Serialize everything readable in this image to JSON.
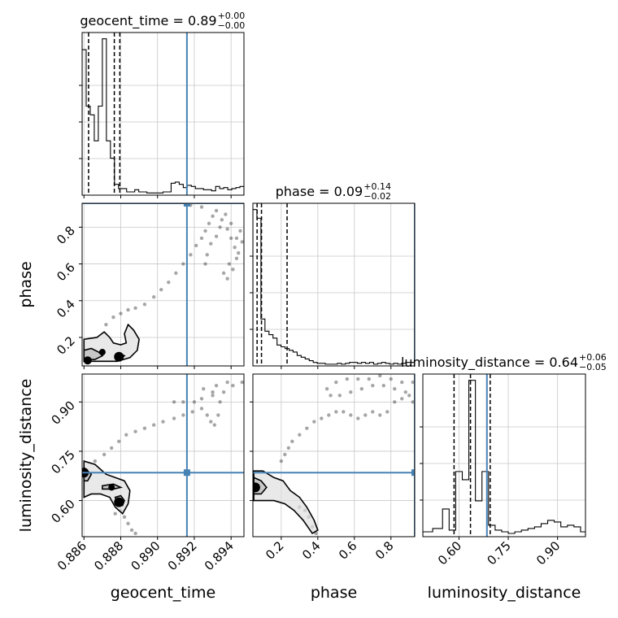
{
  "colors": {
    "truth": "#4682b4",
    "hist": "#000000",
    "grid": "#c8c8c8",
    "density": "#000000"
  },
  "chart_data": {
    "type": "corner",
    "parameters": [
      "geocent_time",
      "phase",
      "luminosity_distance"
    ],
    "truths": {
      "geocent_time": 0.8916,
      "phase": 0.93,
      "luminosity_distance": 0.685
    },
    "grid": true,
    "ranges": {
      "geocent_time": [
        0.8859,
        0.8947
      ],
      "phase": [
        0.045,
        0.93
      ],
      "luminosity_distance": [
        0.49,
        0.985
      ]
    },
    "ticks": {
      "geocent_time": {
        "values": [
          0.886,
          0.888,
          0.89,
          0.892,
          0.894
        ],
        "labels": [
          "0.886",
          "0.888",
          "0.890",
          "0.892",
          "0.894"
        ]
      },
      "phase": {
        "values": [
          0.2,
          0.4,
          0.6,
          0.8
        ],
        "labels": [
          "0.2",
          "0.4",
          "0.6",
          "0.8"
        ]
      },
      "luminosity_distance": {
        "values": [
          0.6,
          0.75,
          0.9
        ],
        "labels": [
          "0.60",
          "0.75",
          "0.90"
        ]
      }
    },
    "titles": [
      {
        "param": "geocent_time",
        "prefix": "geocent_time = 0.89",
        "sup": "+0.00",
        "sub": "−0.00"
      },
      {
        "param": "phase",
        "prefix": "phase = 0.09",
        "sup": "+0.14",
        "sub": "−0.02"
      },
      {
        "param": "luminosity_distance",
        "prefix": "luminosity_distance = 0.64",
        "sup": "+0.06",
        "sub": "−0.05"
      }
    ],
    "axis_labels": {
      "geocent_time": "geocent_time",
      "phase": "phase",
      "luminosity_distance": "luminosity_distance"
    },
    "histograms": {
      "geocent_time": {
        "edges": [
          0.8859,
          0.88612,
          0.88634,
          0.88656,
          0.88678,
          0.887,
          0.88722,
          0.88744,
          0.88766,
          0.88788,
          0.8881,
          0.88832,
          0.88854,
          0.88876,
          0.88898,
          0.8892,
          0.88942,
          0.88964,
          0.88986,
          0.89008,
          0.8903,
          0.89052,
          0.89074,
          0.89096,
          0.89118,
          0.8914,
          0.89162,
          0.89184,
          0.89206,
          0.89228,
          0.8925,
          0.89272,
          0.89294,
          0.89316,
          0.89338,
          0.8936,
          0.89382,
          0.89404,
          0.89426,
          0.89448,
          0.8947
        ],
        "counts": [
          0.67,
          0.41,
          0.37,
          0.25,
          0.41,
          0.72,
          0.25,
          0.17,
          0.05,
          0.03,
          0.03,
          0.015,
          0.015,
          0.025,
          0.015,
          0.015,
          0.01,
          0.01,
          0.01,
          0.01,
          0.015,
          0.015,
          0.055,
          0.06,
          0.05,
          0.035,
          0.045,
          0.04,
          0.03,
          0.03,
          0.025,
          0.025,
          0.02,
          0.04,
          0.03,
          0.035,
          0.025,
          0.03,
          0.035,
          0.04
        ],
        "quantiles": [
          0.88625,
          0.88765,
          0.88795
        ]
      },
      "phase": {
        "edges": [
          0.045,
          0.067,
          0.089,
          0.111,
          0.133,
          0.155,
          0.177,
          0.199,
          0.221,
          0.243,
          0.265,
          0.287,
          0.309,
          0.331,
          0.353,
          0.375,
          0.397,
          0.419,
          0.441,
          0.463,
          0.485,
          0.507,
          0.529,
          0.551,
          0.573,
          0.595,
          0.617,
          0.639,
          0.661,
          0.683,
          0.705,
          0.727,
          0.749,
          0.771,
          0.793,
          0.815,
          0.837,
          0.859,
          0.881,
          0.903,
          0.93
        ],
        "counts": [
          0.9,
          0.85,
          0.27,
          0.2,
          0.18,
          0.16,
          0.12,
          0.11,
          0.1,
          0.09,
          0.08,
          0.06,
          0.05,
          0.04,
          0.03,
          0.02,
          0.015,
          0.015,
          0.01,
          0.01,
          0.01,
          0.015,
          0.01,
          0.015,
          0.02,
          0.02,
          0.015,
          0.02,
          0.015,
          0.02,
          0.01,
          0.015,
          0.02,
          0.015,
          0.01,
          0.015,
          0.01,
          0.015,
          0.02,
          0.02
        ],
        "quantiles": [
          0.068,
          0.092,
          0.232
        ]
      },
      "luminosity_distance": {
        "edges": [
          0.49,
          0.52,
          0.55,
          0.57,
          0.59,
          0.61,
          0.63,
          0.65,
          0.67,
          0.69,
          0.71,
          0.73,
          0.75,
          0.77,
          0.79,
          0.81,
          0.83,
          0.85,
          0.87,
          0.89,
          0.91,
          0.93,
          0.95,
          0.97,
          0.985
        ],
        "counts": [
          0.03,
          0.05,
          0.17,
          0.04,
          0.4,
          0.35,
          0.96,
          0.22,
          0.4,
          0.07,
          0.04,
          0.03,
          0.02,
          0.03,
          0.04,
          0.05,
          0.06,
          0.08,
          0.1,
          0.09,
          0.06,
          0.07,
          0.06,
          0.03
        ],
        "quantiles": [
          0.585,
          0.635,
          0.695
        ]
      }
    },
    "pairs": [
      {
        "x": "geocent_time",
        "y": "phase",
        "scatter": [
          [
            0.8872,
            0.27
          ],
          [
            0.8876,
            0.31
          ],
          [
            0.888,
            0.33
          ],
          [
            0.8884,
            0.35
          ],
          [
            0.8888,
            0.36
          ],
          [
            0.8893,
            0.38
          ],
          [
            0.8898,
            0.42
          ],
          [
            0.8902,
            0.46
          ],
          [
            0.8906,
            0.5
          ],
          [
            0.891,
            0.55
          ],
          [
            0.8914,
            0.6
          ],
          [
            0.8918,
            0.65
          ],
          [
            0.8921,
            0.7
          ],
          [
            0.8924,
            0.74
          ],
          [
            0.8926,
            0.78
          ],
          [
            0.8928,
            0.82
          ],
          [
            0.893,
            0.86
          ],
          [
            0.8932,
            0.89
          ],
          [
            0.8924,
            0.91
          ],
          [
            0.8918,
            0.92
          ],
          [
            0.8935,
            0.84
          ],
          [
            0.8938,
            0.79
          ],
          [
            0.894,
            0.74
          ],
          [
            0.8942,
            0.69
          ],
          [
            0.8943,
            0.63
          ],
          [
            0.8941,
            0.57
          ],
          [
            0.8938,
            0.52
          ],
          [
            0.8936,
            0.55
          ],
          [
            0.8939,
            0.6
          ],
          [
            0.8944,
            0.66
          ],
          [
            0.8946,
            0.72
          ],
          [
            0.8945,
            0.78
          ],
          [
            0.8943,
            0.74
          ],
          [
            0.894,
            0.82
          ],
          [
            0.8937,
            0.87
          ],
          [
            0.8934,
            0.8
          ],
          [
            0.8932,
            0.75
          ],
          [
            0.8929,
            0.71
          ],
          [
            0.8927,
            0.65
          ],
          [
            0.8926,
            0.6
          ]
        ],
        "blobs": [
          [
            0.8862,
            0.075,
            3
          ],
          [
            0.8879,
            0.095,
            4
          ],
          [
            0.887,
            0.12,
            2
          ]
        ],
        "contours": [
          [
            [
              0.886,
              0.19
            ],
            [
              0.8867,
              0.2
            ],
            [
              0.8871,
              0.23
            ],
            [
              0.8874,
              0.2
            ],
            [
              0.8876,
              0.17
            ],
            [
              0.888,
              0.16
            ],
            [
              0.8883,
              0.17
            ],
            [
              0.8882,
              0.22
            ],
            [
              0.8884,
              0.27
            ],
            [
              0.8887,
              0.24
            ],
            [
              0.889,
              0.19
            ],
            [
              0.8889,
              0.13
            ],
            [
              0.8885,
              0.09
            ],
            [
              0.8878,
              0.07
            ],
            [
              0.8868,
              0.07
            ],
            [
              0.886,
              0.07
            ]
          ],
          [
            [
              0.886,
              0.13
            ],
            [
              0.8864,
              0.14
            ],
            [
              0.8868,
              0.12
            ],
            [
              0.887,
              0.1
            ],
            [
              0.8866,
              0.08
            ],
            [
              0.886,
              0.08
            ]
          ],
          [
            [
              0.8877,
              0.1
            ],
            [
              0.888,
              0.11
            ],
            [
              0.8882,
              0.1
            ],
            [
              0.888,
              0.085
            ],
            [
              0.8877,
              0.09
            ]
          ]
        ]
      },
      {
        "x": "geocent_time",
        "y": "luminosity_distance",
        "scatter": [
          [
            0.8866,
            0.72
          ],
          [
            0.8871,
            0.74
          ],
          [
            0.8875,
            0.76
          ],
          [
            0.8879,
            0.78
          ],
          [
            0.8883,
            0.8
          ],
          [
            0.8888,
            0.81
          ],
          [
            0.8893,
            0.82
          ],
          [
            0.8898,
            0.83
          ],
          [
            0.8903,
            0.84
          ],
          [
            0.8909,
            0.85
          ],
          [
            0.8914,
            0.86
          ],
          [
            0.8919,
            0.87
          ],
          [
            0.8924,
            0.88
          ],
          [
            0.8927,
            0.86
          ],
          [
            0.8929,
            0.84
          ],
          [
            0.8931,
            0.83
          ],
          [
            0.8933,
            0.86
          ],
          [
            0.8934,
            0.9
          ],
          [
            0.893,
            0.93
          ],
          [
            0.8925,
            0.94
          ],
          [
            0.892,
            0.9
          ],
          [
            0.8924,
            0.91
          ],
          [
            0.893,
            0.92
          ],
          [
            0.8936,
            0.93
          ],
          [
            0.8941,
            0.95
          ],
          [
            0.8946,
            0.96
          ],
          [
            0.8938,
            0.96
          ],
          [
            0.8932,
            0.95
          ],
          [
            0.8914,
            0.9
          ],
          [
            0.8909,
            0.9
          ],
          [
            0.8882,
            0.55
          ],
          [
            0.8884,
            0.53
          ],
          [
            0.8886,
            0.51
          ],
          [
            0.8888,
            0.5
          ],
          [
            0.888,
            0.57
          ],
          [
            0.8877,
            0.56
          ]
        ],
        "blobs": [
          [
            0.886,
            0.685,
            4
          ],
          [
            0.8879,
            0.595,
            4
          ],
          [
            0.8875,
            0.64,
            2
          ]
        ],
        "contours": [
          [
            [
              0.886,
              0.72
            ],
            [
              0.8866,
              0.71
            ],
            [
              0.8872,
              0.68
            ],
            [
              0.8877,
              0.67
            ],
            [
              0.8882,
              0.66
            ],
            [
              0.8885,
              0.63
            ],
            [
              0.8884,
              0.59
            ],
            [
              0.8881,
              0.56
            ],
            [
              0.8877,
              0.58
            ],
            [
              0.8874,
              0.61
            ],
            [
              0.8869,
              0.62
            ],
            [
              0.8864,
              0.62
            ],
            [
              0.886,
              0.61
            ]
          ],
          [
            [
              0.886,
              0.7
            ],
            [
              0.8864,
              0.68
            ],
            [
              0.8862,
              0.66
            ],
            [
              0.886,
              0.66
            ]
          ],
          [
            [
              0.887,
              0.645
            ],
            [
              0.8876,
              0.65
            ],
            [
              0.888,
              0.64
            ],
            [
              0.8876,
              0.635
            ],
            [
              0.887,
              0.635
            ]
          ],
          [
            [
              0.8877,
              0.61
            ],
            [
              0.888,
              0.615
            ],
            [
              0.8882,
              0.6
            ],
            [
              0.8881,
              0.585
            ],
            [
              0.8878,
              0.59
            ]
          ]
        ]
      },
      {
        "x": "phase",
        "y": "luminosity_distance",
        "scatter": [
          [
            0.2,
            0.72
          ],
          [
            0.22,
            0.74
          ],
          [
            0.24,
            0.76
          ],
          [
            0.26,
            0.78
          ],
          [
            0.3,
            0.8
          ],
          [
            0.34,
            0.82
          ],
          [
            0.38,
            0.84
          ],
          [
            0.42,
            0.85
          ],
          [
            0.46,
            0.86
          ],
          [
            0.5,
            0.87
          ],
          [
            0.54,
            0.87
          ],
          [
            0.58,
            0.86
          ],
          [
            0.62,
            0.85
          ],
          [
            0.66,
            0.86
          ],
          [
            0.7,
            0.87
          ],
          [
            0.74,
            0.86
          ],
          [
            0.78,
            0.87
          ],
          [
            0.82,
            0.9
          ],
          [
            0.86,
            0.91
          ],
          [
            0.9,
            0.92
          ],
          [
            0.92,
            0.9
          ],
          [
            0.88,
            0.93
          ],
          [
            0.82,
            0.94
          ],
          [
            0.76,
            0.95
          ],
          [
            0.7,
            0.95
          ],
          [
            0.64,
            0.94
          ],
          [
            0.58,
            0.93
          ],
          [
            0.52,
            0.92
          ],
          [
            0.47,
            0.92
          ],
          [
            0.45,
            0.94
          ],
          [
            0.5,
            0.96
          ],
          [
            0.56,
            0.97
          ],
          [
            0.62,
            0.97
          ],
          [
            0.68,
            0.97
          ],
          [
            0.74,
            0.98
          ],
          [
            0.8,
            0.97
          ],
          [
            0.86,
            0.96
          ],
          [
            0.92,
            0.96
          ],
          [
            0.35,
            0.55
          ],
          [
            0.37,
            0.52
          ],
          [
            0.39,
            0.5
          ],
          [
            0.33,
            0.57
          ],
          [
            0.3,
            0.58
          ]
        ],
        "blobs": [
          [
            0.058,
            0.64,
            4
          ]
        ],
        "contours": [
          [
            [
              0.05,
              0.69
            ],
            [
              0.1,
              0.69
            ],
            [
              0.16,
              0.67
            ],
            [
              0.21,
              0.66
            ],
            [
              0.25,
              0.63
            ],
            [
              0.3,
              0.61
            ],
            [
              0.34,
              0.58
            ],
            [
              0.38,
              0.54
            ],
            [
              0.4,
              0.51
            ],
            [
              0.37,
              0.5
            ],
            [
              0.32,
              0.54
            ],
            [
              0.27,
              0.57
            ],
            [
              0.22,
              0.59
            ],
            [
              0.16,
              0.6
            ],
            [
              0.1,
              0.6
            ],
            [
              0.05,
              0.6
            ]
          ],
          [
            [
              0.05,
              0.67
            ],
            [
              0.09,
              0.66
            ],
            [
              0.12,
              0.64
            ],
            [
              0.09,
              0.62
            ],
            [
              0.05,
              0.62
            ]
          ]
        ]
      }
    ]
  }
}
